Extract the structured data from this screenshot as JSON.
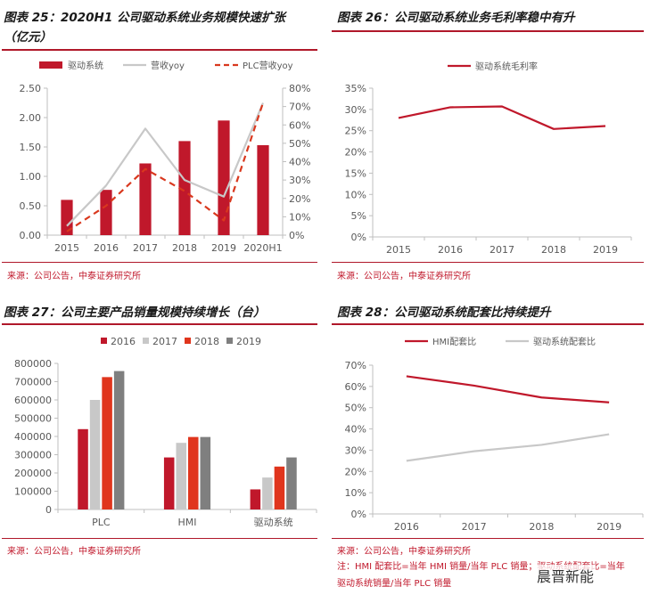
{
  "charts": [
    {
      "title_line1": "图表 25：2020H1 公司驱动系统业务规模快速扩张",
      "title_line2": "（亿元）",
      "source": "来源：公司公告，中泰证券研究所",
      "chart_data": {
        "type": "bar+line",
        "categories": [
          "2015",
          "2016",
          "2017",
          "2018",
          "2019",
          "2020H1"
        ],
        "y_left": {
          "min": 0,
          "max": 2.5,
          "ticks": [
            "0.00",
            "0.50",
            "1.00",
            "1.50",
            "2.00",
            "2.50"
          ]
        },
        "y_right": {
          "min": 0,
          "max": 80,
          "ticks": [
            "0%",
            "10%",
            "20%",
            "30%",
            "40%",
            "50%",
            "60%",
            "70%",
            "80%"
          ]
        },
        "series": [
          {
            "name": "驱动系统",
            "kind": "bar",
            "axis": "left",
            "color": "#c0182b",
            "values": [
              0.6,
              0.77,
              1.22,
              1.6,
              1.95,
              1.53
            ]
          },
          {
            "name": "营收yoy",
            "kind": "line",
            "axis": "right",
            "color": "#c8c8c8",
            "values": [
              5,
              27,
              58,
              30,
              21,
              72
            ]
          },
          {
            "name": "PLC营收yoy",
            "kind": "dashed",
            "axis": "right",
            "color": "#d9381e",
            "values": [
              2,
              16,
              36,
              24,
              8,
              72
            ]
          }
        ]
      }
    },
    {
      "title_line1": "图表 26：公司驱动系统业务毛利率稳中有升",
      "source": "来源：公司公告，中泰证券研究所",
      "chart_data": {
        "type": "line",
        "categories": [
          "2015",
          "2016",
          "2017",
          "2018",
          "2019"
        ],
        "y_left": {
          "min": 0,
          "max": 35,
          "ticks": [
            "0%",
            "5%",
            "10%",
            "15%",
            "20%",
            "25%",
            "30%",
            "35%"
          ]
        },
        "series": [
          {
            "name": "驱动系统毛利率",
            "kind": "line",
            "axis": "left",
            "color": "#c0182b",
            "values": [
              28,
              30.5,
              30.7,
              25.4,
              26.1
            ]
          }
        ]
      }
    },
    {
      "title_line1": "图表 27：公司主要产品销量规模持续增长（台）",
      "source": "来源：公司公告，中泰证券研究所",
      "chart_data": {
        "type": "bar",
        "categories": [
          "PLC",
          "HMI",
          "驱动系统"
        ],
        "y_left": {
          "min": 0,
          "max": 800000,
          "ticks": [
            "0",
            "100000",
            "200000",
            "300000",
            "400000",
            "500000",
            "600000",
            "700000",
            "800000"
          ]
        },
        "series": [
          {
            "name": "2016",
            "kind": "bar",
            "color": "#c0182b",
            "values": [
              440000,
              285000,
              110000
            ]
          },
          {
            "name": "2017",
            "kind": "bar",
            "color": "#c8c8c8",
            "values": [
              600000,
              365000,
              175000
            ]
          },
          {
            "name": "2018",
            "kind": "bar",
            "color": "#e0351d",
            "values": [
              725000,
              397000,
              235000
            ]
          },
          {
            "name": "2019",
            "kind": "bar",
            "color": "#7f7f7f",
            "values": [
              758000,
              397000,
              285000
            ]
          }
        ]
      }
    },
    {
      "title_line1": "图表 28：公司驱动系统配套比持续提升",
      "source": "来源：公司公告，中泰证券研究所",
      "note": "注：HMI 配套比=当年 HMI 销量/当年 PLC 销量；驱动系统配套比=当年驱动系统销量/当年 PLC 销量",
      "chart_data": {
        "type": "line",
        "categories": [
          "2016",
          "2017",
          "2018",
          "2019"
        ],
        "y_left": {
          "min": 0,
          "max": 70,
          "ticks": [
            "0%",
            "10%",
            "20%",
            "30%",
            "40%",
            "50%",
            "60%",
            "70%"
          ]
        },
        "series": [
          {
            "name": "HMI配套比",
            "kind": "line",
            "axis": "left",
            "color": "#c0182b",
            "values": [
              64.8,
              60.4,
              54.8,
              52.5
            ]
          },
          {
            "name": "驱动系统配套比",
            "kind": "line",
            "axis": "left",
            "color": "#c8c8c8",
            "values": [
              25,
              29.5,
              32.5,
              37.5
            ]
          }
        ]
      }
    }
  ],
  "watermark": "晨晋新能"
}
